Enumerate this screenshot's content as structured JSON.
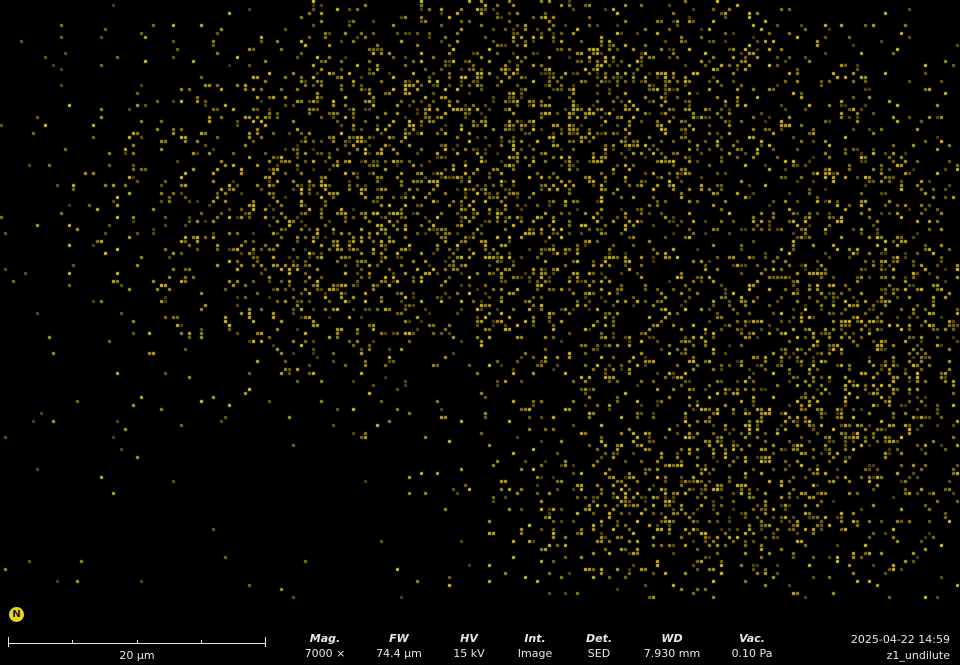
{
  "map": {
    "element": "N",
    "dot_color": "#e8c81c",
    "background": "#000000"
  },
  "scale": {
    "label": "20 µm"
  },
  "meta": [
    {
      "key": "mag",
      "head": "Mag.",
      "value": "7000 ×"
    },
    {
      "key": "fw",
      "head": "FW",
      "value": "74.4 µm"
    },
    {
      "key": "hv",
      "head": "HV",
      "value": "15 kV"
    },
    {
      "key": "int",
      "head": "Int.",
      "value": "Image"
    },
    {
      "key": "det",
      "head": "Det.",
      "value": "SED"
    },
    {
      "key": "wd",
      "head": "WD",
      "value": "7.930 mm"
    },
    {
      "key": "vac",
      "head": "Vac.",
      "value": "0.10 Pa"
    }
  ],
  "stamp": {
    "datetime": "2025-04-22 14:59",
    "sample": "z1_undilute"
  }
}
